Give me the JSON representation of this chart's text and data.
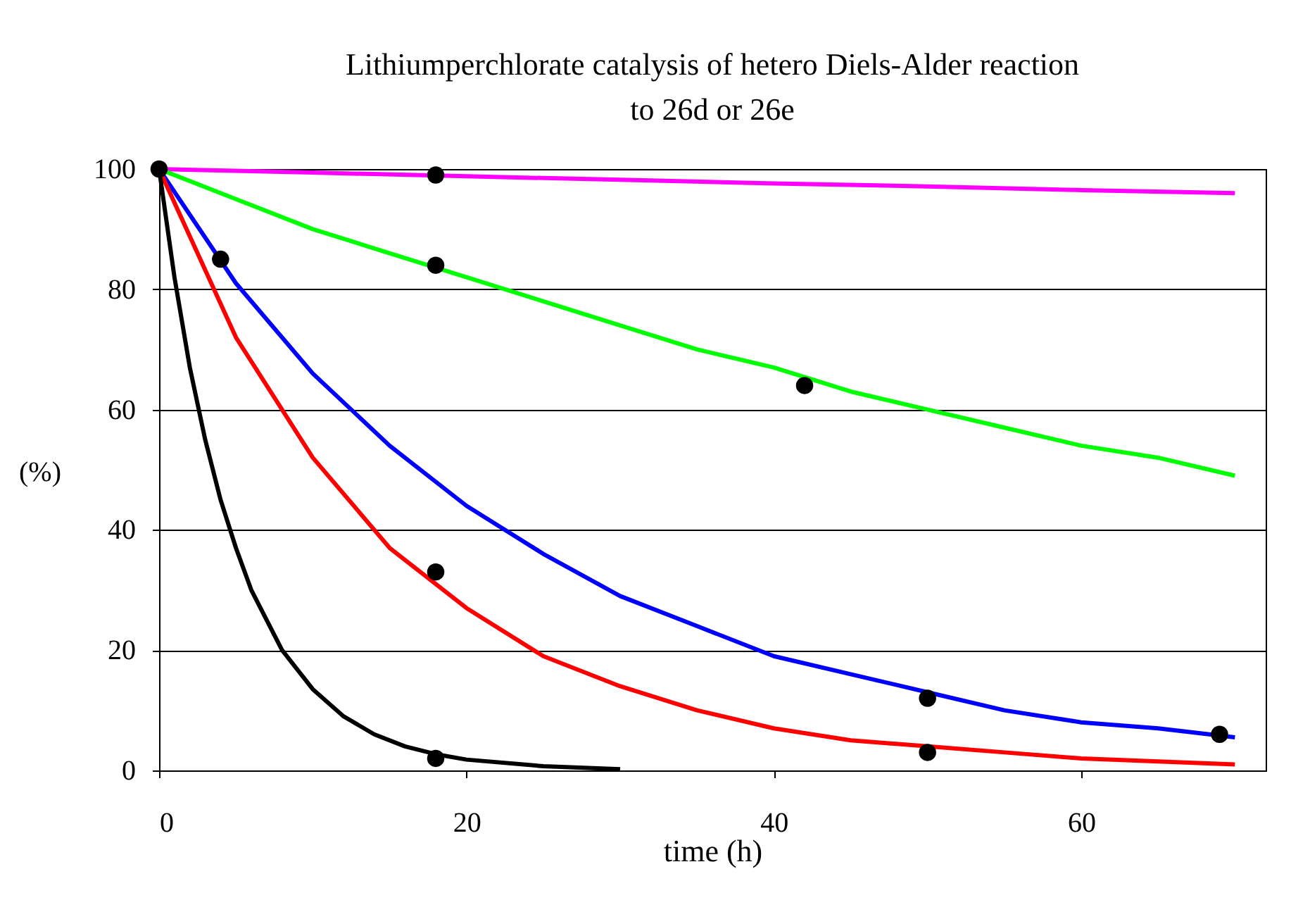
{
  "chart_data": {
    "type": "line",
    "title": "Lithiumperchlorate catalysis of hetero Diels-Alder reaction\nto 26d or 26e",
    "xlabel": "time (h)",
    "ylabel": "(%)",
    "xlim": [
      0,
      72
    ],
    "xticks": [
      0,
      20,
      40,
      60
    ],
    "ylim": [
      0,
      100
    ],
    "yticks": [
      0,
      20,
      40,
      60,
      80,
      100
    ],
    "grid": "y",
    "line_style": "solid",
    "series": [
      {
        "color": "#ff00ff",
        "x": [
          0,
          10,
          20,
          30,
          40,
          50,
          60,
          70
        ],
        "values": [
          100,
          99.4,
          98.8,
          98.2,
          97.6,
          97.1,
          96.5,
          96
        ]
      },
      {
        "color": "#00ff00",
        "x": [
          0,
          5,
          10,
          15,
          20,
          25,
          30,
          35,
          40,
          45,
          50,
          55,
          60,
          65,
          70
        ],
        "values": [
          100,
          95,
          90,
          86,
          82,
          78,
          74,
          70,
          67,
          63,
          60,
          57,
          54,
          52,
          49
        ]
      },
      {
        "color": "#0000ff",
        "x": [
          0,
          5,
          10,
          15,
          20,
          25,
          30,
          35,
          40,
          45,
          50,
          55,
          60,
          65,
          70
        ],
        "values": [
          100,
          81,
          66,
          54,
          44,
          36,
          29,
          24,
          19,
          16,
          13,
          10,
          8,
          7,
          5.5
        ]
      },
      {
        "color": "#ff0000",
        "x": [
          0,
          5,
          10,
          15,
          20,
          25,
          30,
          35,
          40,
          45,
          50,
          55,
          60,
          65,
          70
        ],
        "values": [
          100,
          72,
          52,
          37,
          27,
          19,
          14,
          10,
          7,
          5,
          4,
          3,
          2,
          1.5,
          1
        ]
      },
      {
        "color": "#000000",
        "x": [
          0,
          1,
          2,
          3,
          4,
          5,
          6,
          8,
          10,
          12,
          14,
          16,
          18,
          20,
          25,
          30
        ],
        "values": [
          100,
          82,
          67,
          55,
          45,
          37,
          30,
          20,
          13.5,
          9,
          6,
          4,
          2.7,
          1.8,
          0.7,
          0.2
        ]
      },
      {
        "type": "scatter",
        "marker": "circle",
        "color": "#000000",
        "x": [
          0,
          4,
          18,
          18,
          18,
          18,
          42,
          50,
          50,
          69
        ],
        "values": [
          100,
          85,
          99,
          84,
          33,
          2,
          64,
          12,
          3,
          6
        ]
      }
    ]
  }
}
